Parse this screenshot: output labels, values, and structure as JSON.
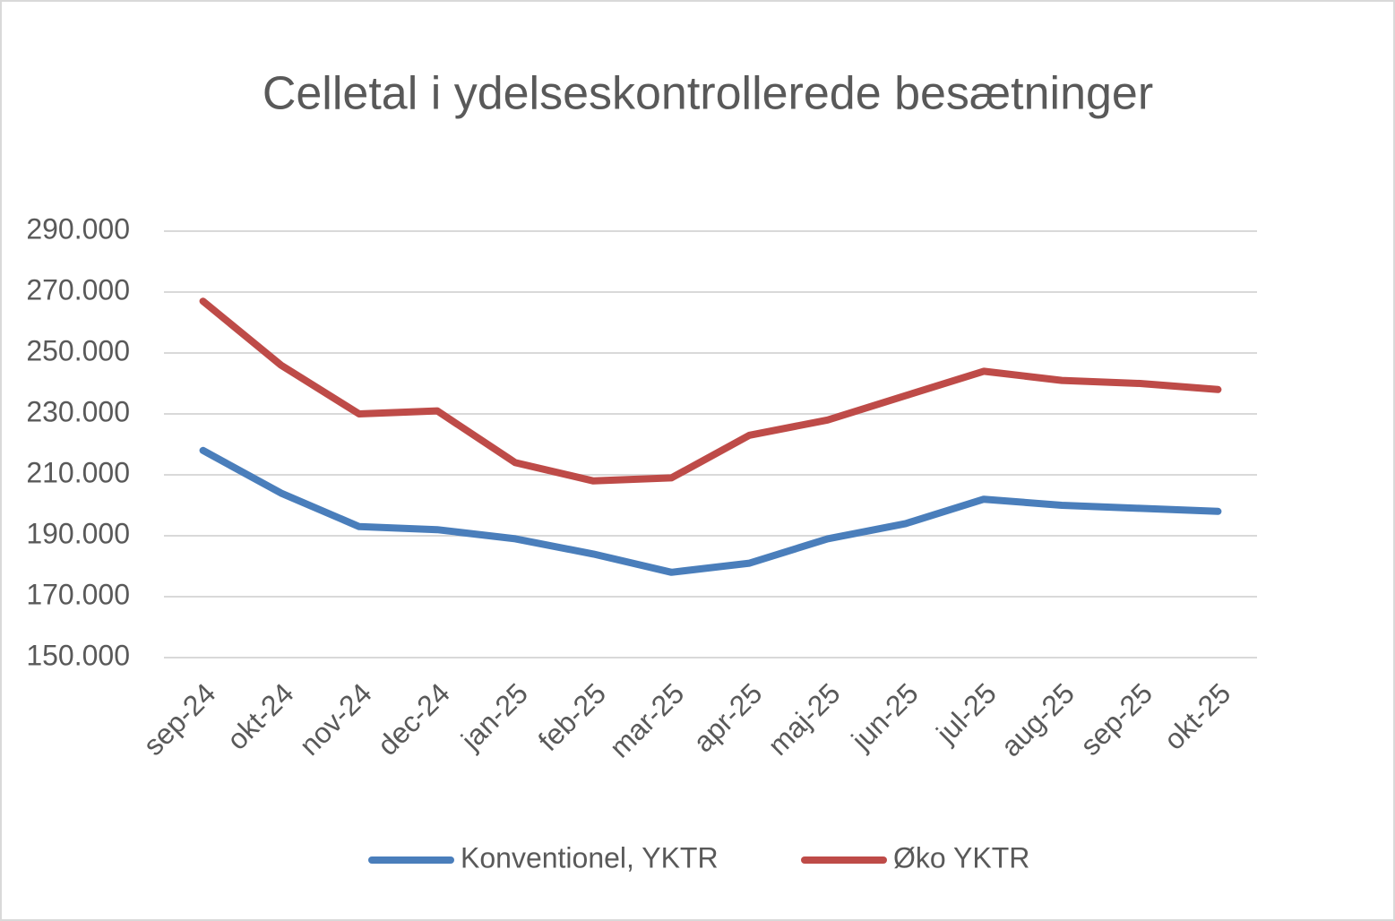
{
  "chart_data": {
    "type": "line",
    "title": "Celletal i ydelseskontrollerede besætninger",
    "categories": [
      "sep-24",
      "okt-24",
      "nov-24",
      "dec-24",
      "jan-25",
      "feb-25",
      "mar-25",
      "apr-25",
      "maj-25",
      "jun-25",
      "jul-25",
      "aug-25",
      "sep-25",
      "okt-25"
    ],
    "series": [
      {
        "name": "Konventionel, YKTR",
        "color": "#4a7ebb",
        "values": [
          218000,
          204000,
          193000,
          192000,
          189000,
          184000,
          178000,
          181000,
          189000,
          194000,
          202000,
          200000,
          199000,
          198000
        ]
      },
      {
        "name": "Øko YKTR",
        "color": "#be4b48",
        "values": [
          267000,
          246000,
          230000,
          231000,
          214000,
          208000,
          209000,
          223000,
          228000,
          236000,
          244000,
          241000,
          240000,
          238000
        ]
      }
    ],
    "ylim": [
      150000,
      290000
    ],
    "yticks": [
      {
        "value": 150000,
        "label": "150.000"
      },
      {
        "value": 170000,
        "label": "170.000"
      },
      {
        "value": 190000,
        "label": "190.000"
      },
      {
        "value": 210000,
        "label": "210.000"
      },
      {
        "value": 230000,
        "label": "230.000"
      },
      {
        "value": 250000,
        "label": "250.000"
      },
      {
        "value": 270000,
        "label": "270.000"
      },
      {
        "value": 290000,
        "label": "290.000"
      }
    ],
    "grid": true,
    "legend": "bottom"
  }
}
